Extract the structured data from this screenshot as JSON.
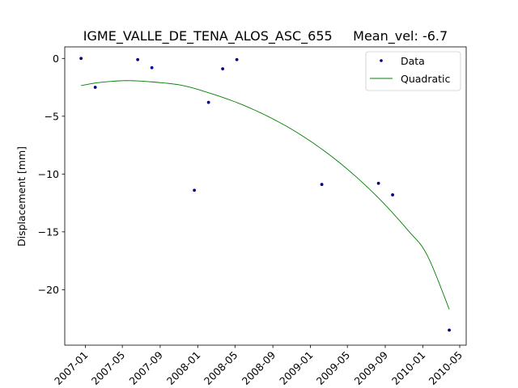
{
  "chart_data": {
    "type": "scatter",
    "title": "IGME_VALLE_DE_TENA_ALOS_ASC_655     Mean_vel: -6.7",
    "xlabel": "",
    "ylabel": "Displacement [mm]",
    "x_ticks": [
      "2007-01",
      "2007-05",
      "2007-09",
      "2008-01",
      "2008-05",
      "2008-09",
      "2009-01",
      "2009-05",
      "2009-09",
      "2010-01",
      "2010-05"
    ],
    "y_ticks": [
      0,
      -5,
      -10,
      -15,
      -20
    ],
    "xlim": [
      "2006-10-26",
      "2010-05-22"
    ],
    "ylim": [
      -24.8,
      1.0
    ],
    "grid": false,
    "legend_position": "top-right",
    "colors": {
      "data": "#000080",
      "fit": "#008000",
      "frame": "#000000"
    },
    "series": [
      {
        "name": "Data",
        "kind": "points",
        "points": [
          {
            "x": "2006-12-18",
            "y": 0.0
          },
          {
            "x": "2007-02-02",
            "y": -2.5
          },
          {
            "x": "2007-06-20",
            "y": -0.1
          },
          {
            "x": "2007-08-05",
            "y": -0.8
          },
          {
            "x": "2007-12-21",
            "y": -11.4
          },
          {
            "x": "2008-02-05",
            "y": -3.8
          },
          {
            "x": "2008-03-22",
            "y": -0.9
          },
          {
            "x": "2008-05-07",
            "y": -0.1
          },
          {
            "x": "2009-02-07",
            "y": -10.9
          },
          {
            "x": "2009-08-10",
            "y": -10.8
          },
          {
            "x": "2009-09-25",
            "y": -11.8
          },
          {
            "x": "2010-03-28",
            "y": -23.5
          }
        ]
      },
      {
        "name": "Quadratic",
        "kind": "curve",
        "points": [
          {
            "x": "2006-12-18",
            "y": -2.35
          },
          {
            "x": "2007-02-15",
            "y": -2.08
          },
          {
            "x": "2007-05-15",
            "y": -1.92
          },
          {
            "x": "2007-08-15",
            "y": -2.05
          },
          {
            "x": "2007-11-15",
            "y": -2.35
          },
          {
            "x": "2008-02-15",
            "y": -3.05
          },
          {
            "x": "2008-05-15",
            "y": -3.9
          },
          {
            "x": "2008-08-15",
            "y": -5.0
          },
          {
            "x": "2008-11-15",
            "y": -6.35
          },
          {
            "x": "2009-02-15",
            "y": -8.0
          },
          {
            "x": "2009-05-15",
            "y": -9.9
          },
          {
            "x": "2009-08-15",
            "y": -12.2
          },
          {
            "x": "2009-11-15",
            "y": -14.9
          },
          {
            "x": "2010-01-15",
            "y": -17.0
          },
          {
            "x": "2010-03-28",
            "y": -21.7
          }
        ]
      }
    ]
  }
}
